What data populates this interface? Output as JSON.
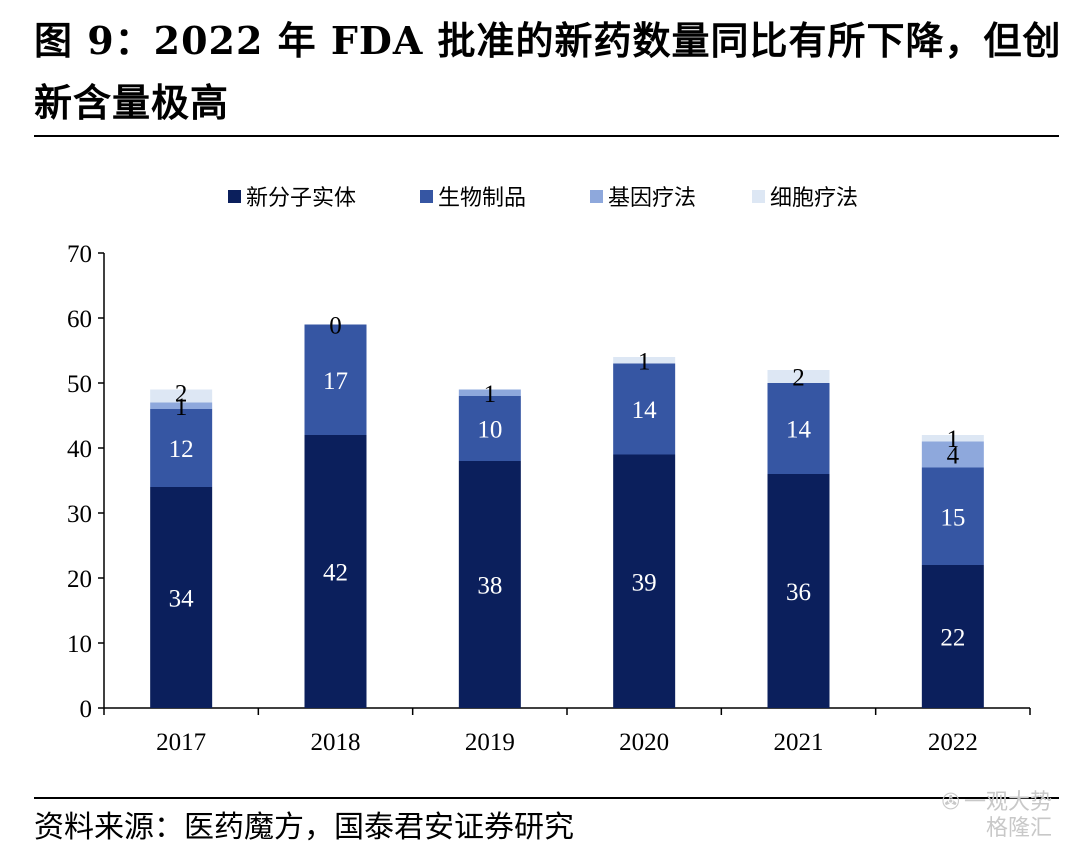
{
  "header": {
    "title": "图 9：2022 年 FDA 批准的新药数量同比有所下降，但创新含量极高"
  },
  "footer": {
    "source": "资料来源：医药魔方，国泰君安证券研究"
  },
  "watermark": {
    "line1": "一观大势",
    "line2": "格隆汇"
  },
  "colors": {
    "new_molecular_entity": "#0b1f5c",
    "biologics": "#3656a3",
    "gene_therapy": "#8ea8dc",
    "cell_therapy": "#dde7f4"
  },
  "chart_data": {
    "type": "bar",
    "stacked": true,
    "title": "",
    "xlabel": "",
    "ylabel": "",
    "categories": [
      "2017",
      "2018",
      "2019",
      "2020",
      "2021",
      "2022"
    ],
    "ylim": [
      0,
      70
    ],
    "yticks": [
      0,
      10,
      20,
      30,
      40,
      50,
      60,
      70
    ],
    "legend_position": "top",
    "grid": false,
    "series": [
      {
        "name": "新分子实体",
        "values": [
          34,
          42,
          38,
          39,
          36,
          22
        ]
      },
      {
        "name": "生物制品",
        "values": [
          12,
          17,
          10,
          14,
          14,
          15
        ]
      },
      {
        "name": "基因疗法",
        "values": [
          1,
          0,
          1,
          0,
          0,
          4
        ]
      },
      {
        "name": "细胞疗法",
        "values": [
          2,
          0,
          0,
          1,
          2,
          1
        ]
      }
    ],
    "data_labels": [
      [
        "34",
        "42",
        "38",
        "39",
        "36",
        "22"
      ],
      [
        "12",
        "17",
        "10",
        "14",
        "14",
        "15"
      ],
      [
        "1",
        "0",
        "1",
        null,
        null,
        "4"
      ],
      [
        "2",
        null,
        null,
        "1",
        "2",
        "1"
      ]
    ]
  }
}
